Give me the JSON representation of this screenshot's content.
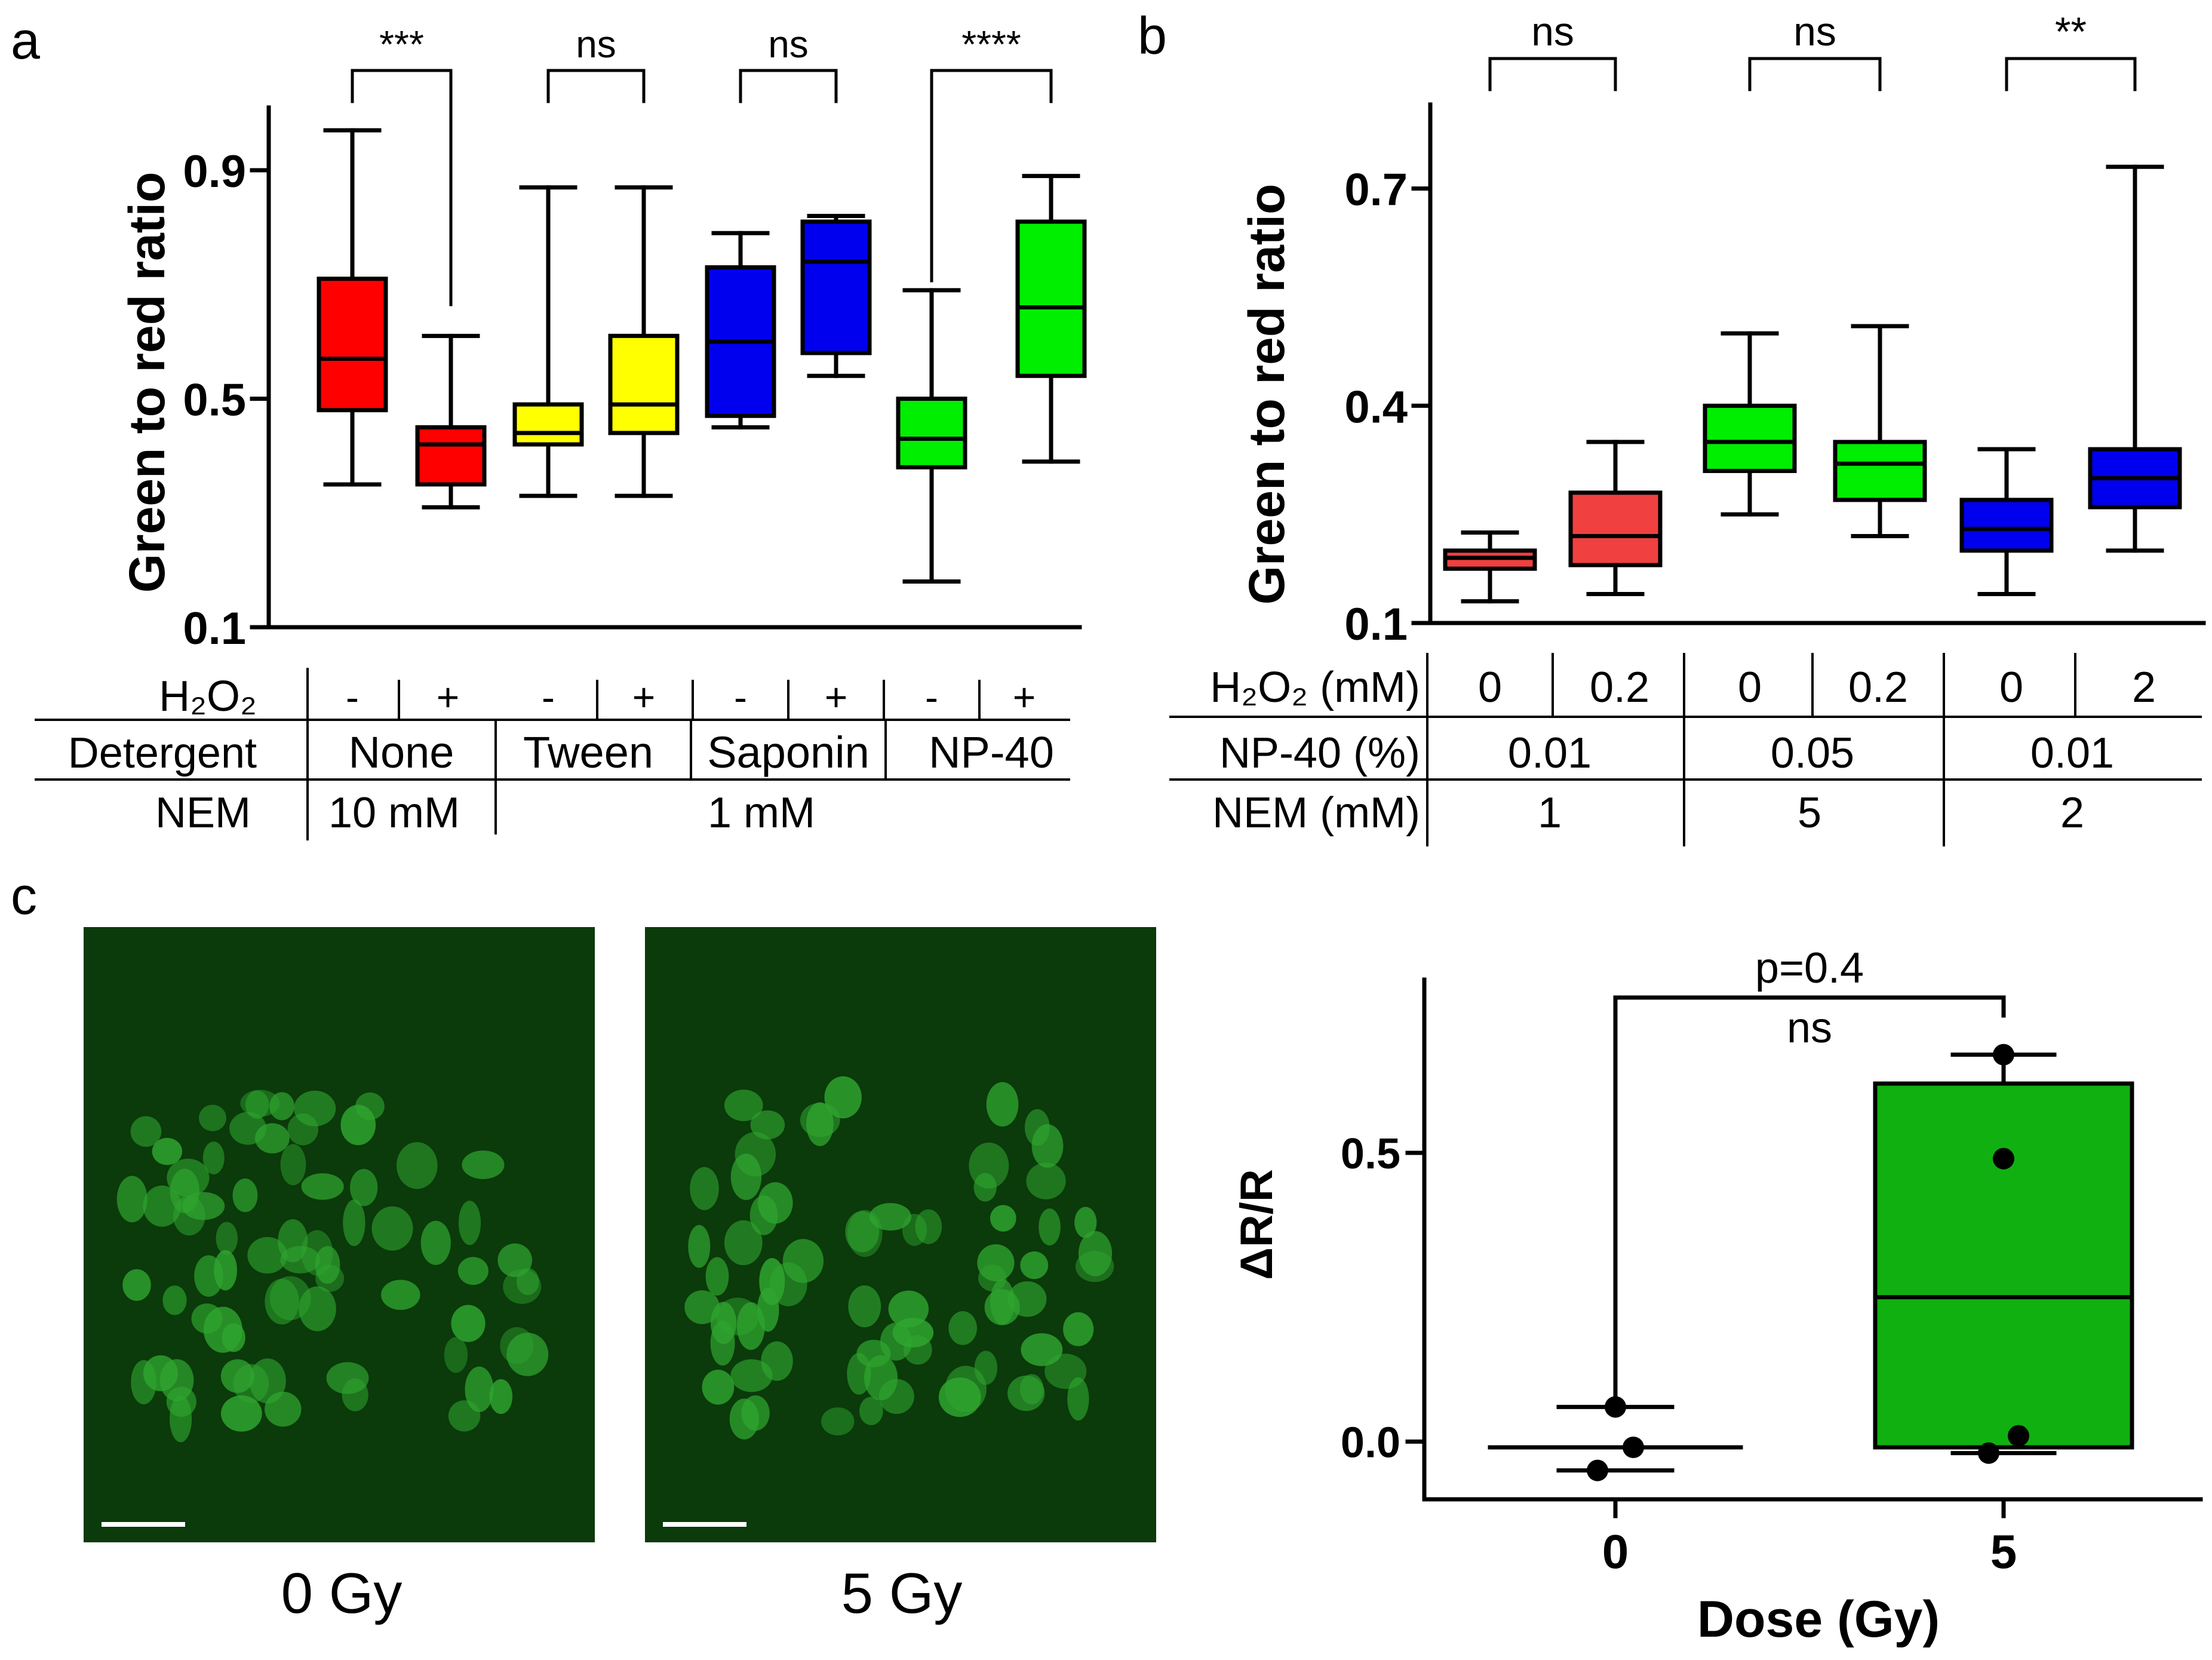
{
  "panel_labels": {
    "a": "a",
    "b": "b",
    "c": "c"
  },
  "colors": {
    "red": "#ff0000",
    "light_red": "#f04040",
    "yellow": "#ffff00",
    "blue": "#0000ee",
    "green": "#00ee00",
    "dark_green": "#10b010",
    "black": "#000000",
    "micrograph_bg": "#0b3a0b",
    "micrograph_cell": "#2fa52f"
  },
  "chart_data": [
    {
      "id": "a",
      "type": "box",
      "ylabel": "Green to red ratio",
      "ylim": [
        0.1,
        0.9
      ],
      "yticks": [
        "0.1",
        "0.5",
        "0.9"
      ],
      "boxes": [
        {
          "color": "#ff0000",
          "whisker_low": 0.35,
          "q1": 0.48,
          "median": 0.57,
          "q3": 0.71,
          "whisker_high": 0.97
        },
        {
          "color": "#ff0000",
          "whisker_low": 0.31,
          "q1": 0.35,
          "median": 0.42,
          "q3": 0.45,
          "whisker_high": 0.61
        },
        {
          "color": "#ffff00",
          "whisker_low": 0.33,
          "q1": 0.42,
          "median": 0.44,
          "q3": 0.49,
          "whisker_high": 0.87
        },
        {
          "color": "#ffff00",
          "whisker_low": 0.33,
          "q1": 0.44,
          "median": 0.49,
          "q3": 0.61,
          "whisker_high": 0.87
        },
        {
          "color": "#0000ee",
          "whisker_low": 0.45,
          "q1": 0.47,
          "median": 0.6,
          "q3": 0.73,
          "whisker_high": 0.79
        },
        {
          "color": "#0000ee",
          "whisker_low": 0.54,
          "q1": 0.58,
          "median": 0.74,
          "q3": 0.81,
          "whisker_high": 0.82
        },
        {
          "color": "#00ee00",
          "whisker_low": 0.18,
          "q1": 0.38,
          "median": 0.43,
          "q3": 0.5,
          "whisker_high": 0.69
        },
        {
          "color": "#00ee00",
          "whisker_low": 0.39,
          "q1": 0.54,
          "median": 0.66,
          "q3": 0.81,
          "whisker_high": 0.89
        }
      ],
      "significance": [
        {
          "pair": [
            0,
            1
          ],
          "label": "***"
        },
        {
          "pair": [
            2,
            3
          ],
          "label": "ns"
        },
        {
          "pair": [
            4,
            5
          ],
          "label": "ns"
        },
        {
          "pair": [
            6,
            7
          ],
          "label": "****"
        }
      ],
      "table": {
        "row_labels": [
          "H2O2",
          "Detergent",
          "NEM"
        ],
        "h2o2": [
          "-",
          "+",
          "-",
          "+",
          "-",
          "+",
          "-",
          "+"
        ],
        "detergent": [
          "None",
          "Tween",
          "Saponin",
          "NP-40"
        ],
        "nem": [
          "10 mM",
          "1 mM"
        ]
      }
    },
    {
      "id": "b",
      "type": "box",
      "ylabel": "Green to red ratio",
      "ylim": [
        0.1,
        0.75
      ],
      "yticks": [
        "0.1",
        "0.4",
        "0.7"
      ],
      "boxes": [
        {
          "color": "#f04040",
          "whisker_low": 0.13,
          "q1": 0.175,
          "median": 0.19,
          "q3": 0.2,
          "whisker_high": 0.225
        },
        {
          "color": "#f04040",
          "whisker_low": 0.14,
          "q1": 0.18,
          "median": 0.22,
          "q3": 0.28,
          "whisker_high": 0.35
        },
        {
          "color": "#00ee00",
          "whisker_low": 0.25,
          "q1": 0.31,
          "median": 0.35,
          "q3": 0.4,
          "whisker_high": 0.5
        },
        {
          "color": "#00ee00",
          "whisker_low": 0.22,
          "q1": 0.27,
          "median": 0.32,
          "q3": 0.35,
          "whisker_high": 0.51
        },
        {
          "color": "#0000ee",
          "whisker_low": 0.14,
          "q1": 0.2,
          "median": 0.23,
          "q3": 0.27,
          "whisker_high": 0.34
        },
        {
          "color": "#0000ee",
          "whisker_low": 0.2,
          "q1": 0.26,
          "median": 0.3,
          "q3": 0.34,
          "whisker_high": 0.73
        }
      ],
      "significance": [
        {
          "pair": [
            0,
            1
          ],
          "label": "ns"
        },
        {
          "pair": [
            2,
            3
          ],
          "label": "ns"
        },
        {
          "pair": [
            4,
            5
          ],
          "label": "**"
        }
      ],
      "table": {
        "row_labels": [
          "H2O2 (mM)",
          "NP-40 (%)",
          "NEM (mM)"
        ],
        "h2o2": [
          "0",
          "0.2",
          "0",
          "0.2",
          "0",
          "2"
        ],
        "np40": [
          "0.01",
          "0.05",
          "0.01"
        ],
        "nem": [
          "1",
          "5",
          "2"
        ]
      }
    },
    {
      "id": "c",
      "type": "box",
      "xlabel": "Dose (Gy)",
      "ylabel": "ΔR/R",
      "categories": [
        "0",
        "5"
      ],
      "ylim": [
        -0.1,
        0.8
      ],
      "yticks": [
        "0.0",
        "0.5"
      ],
      "boxes": [
        {
          "color": "#ffffff",
          "whisker_low": -0.05,
          "q1": -0.01,
          "median": -0.01,
          "q3": -0.01,
          "whisker_high": 0.06
        },
        {
          "color": "#10b010",
          "whisker_low": -0.02,
          "q1": -0.01,
          "median": 0.25,
          "q3": 0.62,
          "whisker_high": 0.67
        }
      ],
      "points": [
        {
          "category": 0,
          "values": [
            0.06,
            -0.01,
            -0.05
          ]
        },
        {
          "category": 1,
          "values": [
            0.67,
            0.49,
            0.01,
            -0.02
          ]
        }
      ],
      "significance": [
        {
          "pair": [
            0,
            1
          ],
          "label": "ns",
          "p_label": "p=0.4"
        }
      ]
    }
  ],
  "micrographs": [
    {
      "caption": "0 Gy"
    },
    {
      "caption": "5 Gy"
    }
  ]
}
